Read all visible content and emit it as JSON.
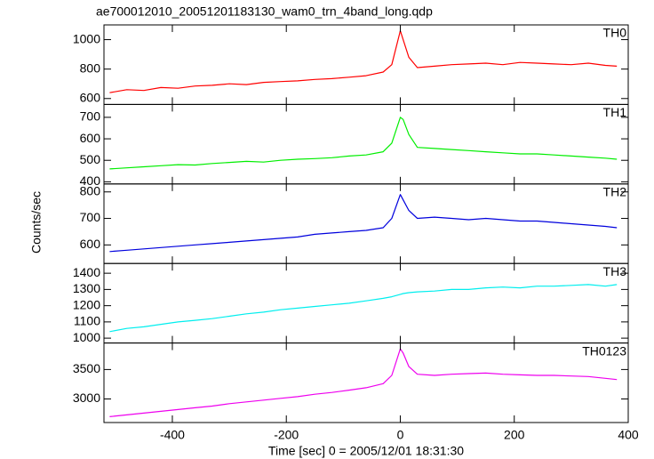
{
  "chart_data": {
    "type": "line",
    "title": "ae700012010_20051201183130_wam0_trn_4band_long.qdp",
    "xlabel": "Time [sec] 0 = 2005/12/01 18:31:30",
    "ylabel": "Counts/sec",
    "xlim": [
      -520,
      400
    ],
    "xticks": [
      -400,
      -200,
      0,
      200,
      400
    ],
    "x": [
      -510,
      -480,
      -450,
      -420,
      -390,
      -360,
      -330,
      -300,
      -270,
      -240,
      -210,
      -180,
      -150,
      -120,
      -90,
      -60,
      -30,
      -15,
      0,
      5,
      15,
      30,
      60,
      90,
      120,
      150,
      180,
      210,
      240,
      270,
      300,
      330,
      360,
      380
    ],
    "panels": [
      {
        "name": "TH0",
        "color": "#ff0000",
        "ylim": [
          560,
          1100
        ],
        "yticks": [
          600,
          800,
          1000
        ],
        "values": [
          640,
          660,
          655,
          675,
          670,
          685,
          690,
          700,
          695,
          710,
          715,
          720,
          730,
          735,
          745,
          755,
          780,
          830,
          1060,
          1000,
          880,
          810,
          820,
          830,
          835,
          840,
          830,
          845,
          840,
          835,
          830,
          840,
          825,
          820
        ]
      },
      {
        "name": "TH1",
        "color": "#00ee00",
        "ylim": [
          390,
          760
        ],
        "yticks": [
          400,
          500,
          600,
          700
        ],
        "values": [
          460,
          465,
          470,
          475,
          480,
          478,
          485,
          490,
          495,
          492,
          500,
          505,
          508,
          512,
          520,
          525,
          540,
          580,
          700,
          690,
          620,
          560,
          555,
          550,
          545,
          540,
          535,
          530,
          530,
          525,
          520,
          515,
          510,
          505
        ]
      },
      {
        "name": "TH2",
        "color": "#0000dd",
        "ylim": [
          530,
          830
        ],
        "yticks": [
          600,
          700,
          800
        ],
        "values": [
          575,
          580,
          585,
          590,
          595,
          600,
          605,
          610,
          615,
          620,
          625,
          630,
          640,
          645,
          650,
          655,
          665,
          700,
          790,
          770,
          730,
          700,
          705,
          700,
          695,
          700,
          695,
          690,
          690,
          685,
          680,
          675,
          670,
          665
        ]
      },
      {
        "name": "TH3",
        "color": "#00eeee",
        "ylim": [
          970,
          1460
        ],
        "yticks": [
          1000,
          1100,
          1200,
          1300,
          1400
        ],
        "values": [
          1040,
          1060,
          1070,
          1085,
          1100,
          1110,
          1120,
          1135,
          1150,
          1160,
          1175,
          1185,
          1195,
          1205,
          1215,
          1230,
          1245,
          1255,
          1270,
          1275,
          1280,
          1285,
          1290,
          1300,
          1300,
          1310,
          1315,
          1310,
          1320,
          1320,
          1325,
          1330,
          1320,
          1330
        ]
      },
      {
        "name": "TH0123",
        "color": "#ee00ee",
        "ylim": [
          2600,
          3950
        ],
        "yticks": [
          3000,
          3500
        ],
        "values": [
          2700,
          2730,
          2760,
          2790,
          2820,
          2850,
          2880,
          2920,
          2950,
          2980,
          3010,
          3040,
          3080,
          3110,
          3150,
          3190,
          3260,
          3400,
          3850,
          3780,
          3550,
          3420,
          3400,
          3420,
          3430,
          3440,
          3420,
          3410,
          3400,
          3400,
          3390,
          3380,
          3350,
          3330
        ]
      }
    ]
  }
}
